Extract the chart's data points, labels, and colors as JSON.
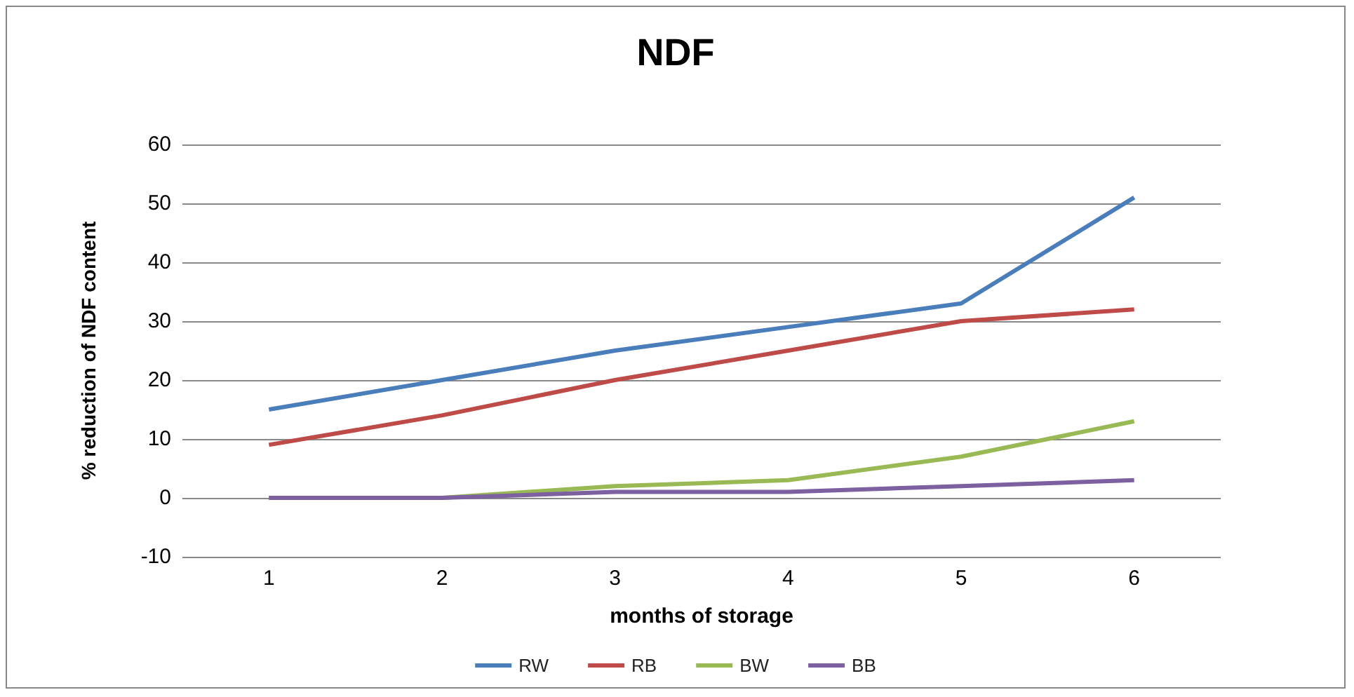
{
  "chart_data": {
    "type": "line",
    "title": "NDF",
    "xlabel": "months of storage",
    "ylabel": "% reduction of NDF content",
    "categories": [
      "1",
      "2",
      "3",
      "4",
      "5",
      "6"
    ],
    "series": [
      {
        "name": "RW",
        "color": "#4a7ebb",
        "values": [
          15,
          20,
          25,
          29,
          33,
          51
        ]
      },
      {
        "name": "RB",
        "color": "#be4b48",
        "values": [
          9,
          14,
          20,
          25,
          30,
          32
        ]
      },
      {
        "name": "BW",
        "color": "#98b954",
        "values": [
          0,
          0,
          2,
          3,
          7,
          13
        ]
      },
      {
        "name": "BB",
        "color": "#7d60a0",
        "values": [
          0,
          0,
          1,
          1,
          2,
          3
        ]
      }
    ],
    "ylim": [
      -10,
      60
    ],
    "yticks": [
      -10,
      0,
      10,
      20,
      30,
      40,
      50,
      60
    ],
    "grid": "y",
    "legend": "bottom",
    "marker": "none",
    "line_style": "solid"
  }
}
